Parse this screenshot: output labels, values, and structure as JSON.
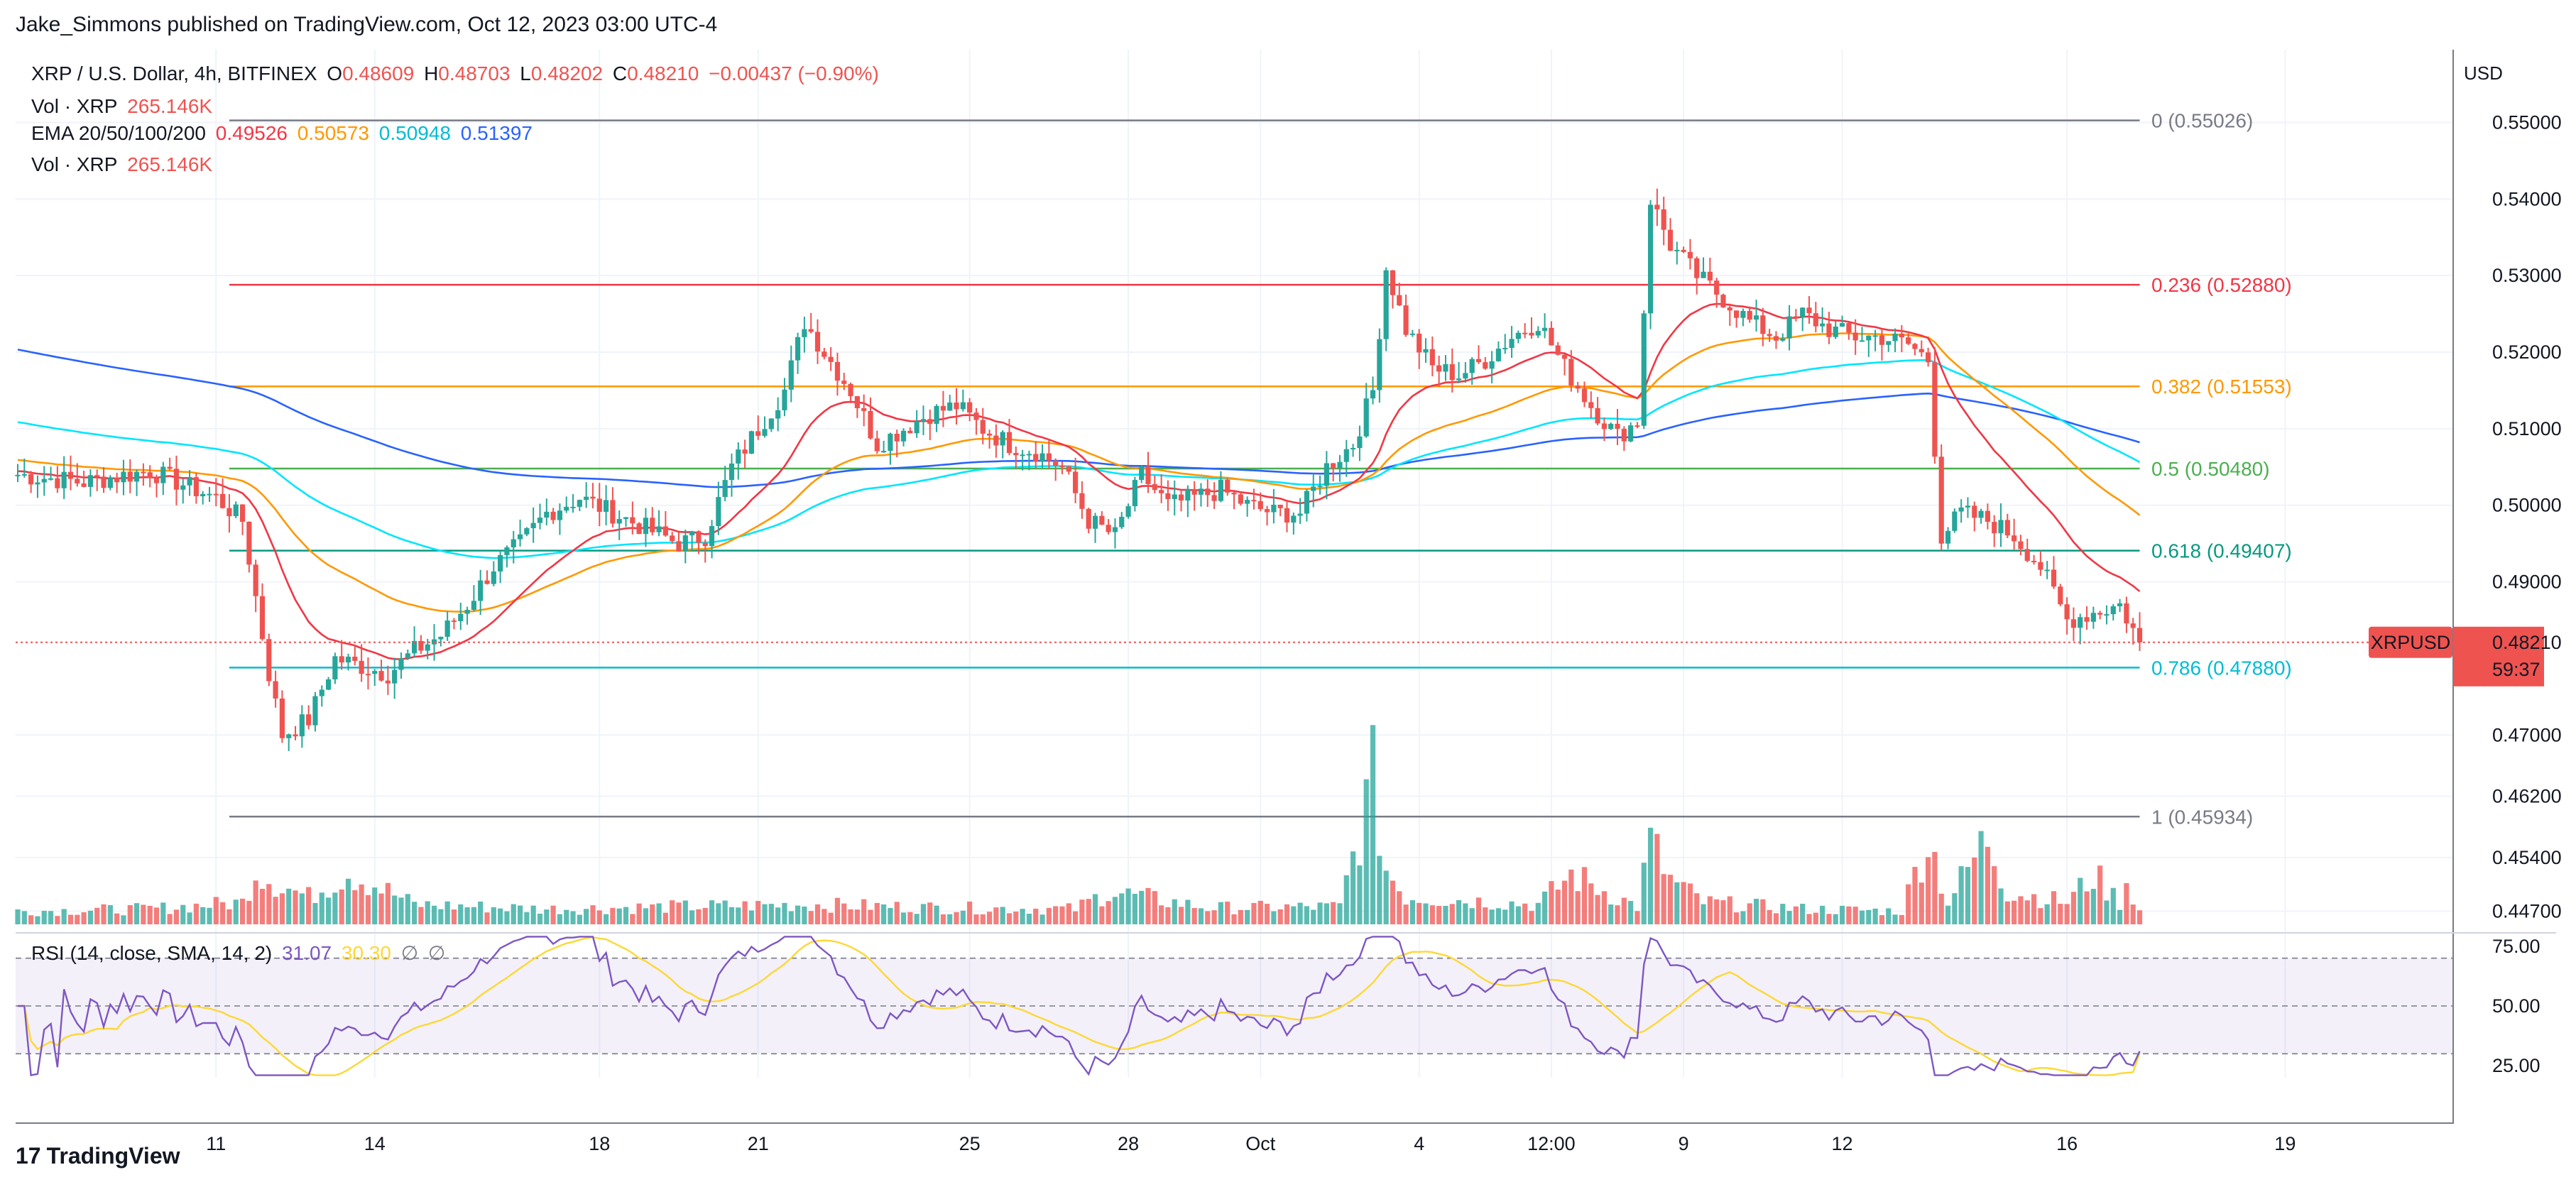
{
  "header": {
    "published": "Jake_Simmons published on TradingView.com, Oct 12, 2023 03:00 UTC-4",
    "symbol": "XRP / U.S. Dollar, 4h, BITFINEX",
    "o_label": "O",
    "o_value": "0.48609",
    "h_label": "H",
    "h_value": "0.48703",
    "l_label": "L",
    "l_value": "0.48202",
    "c_label": "C",
    "c_value": "0.48210",
    "change": "−0.00437 (−0.90%)",
    "vol_label": "Vol · XRP",
    "vol_value": "265.146K",
    "ema_label": "EMA 20/50/100/200",
    "ema20": "0.49526",
    "ema50": "0.50573",
    "ema100": "0.50948",
    "ema200": "0.51397",
    "vol2_label": "Vol · XRP",
    "vol2_value": "265.146K",
    "currency": "USD"
  },
  "rsi_legend": {
    "label": "RSI (14, close, SMA, 14, 2)",
    "rsi": "31.07",
    "sma": "30.30",
    "glyph1": "∅",
    "glyph2": "∅"
  },
  "price_tag": {
    "symbol": "XRPUSD",
    "price": "0.48210",
    "countdown": "59:37"
  },
  "footer": {
    "brand": "TradingView",
    "logo_glyph": "17"
  },
  "colors": {
    "up": "#26a69a",
    "down": "#ef5350",
    "ema20": "#f23645",
    "ema50": "#ff9800",
    "ema100": "#00e5ff",
    "ema200": "#2962ff",
    "rsi": "#7e57c2",
    "rsi_sma": "#fdd835"
  },
  "chart_data": [
    {
      "type": "candlestick",
      "title": "XRP / U.S. Dollar, 4h, BITFINEX",
      "x_tick_labels": [
        "11",
        "14",
        "18",
        "21",
        "25",
        "28",
        "Oct",
        "4",
        "12:00",
        "9",
        "12",
        "16",
        "19"
      ],
      "y_tick_labels": [
        "0.55000",
        "0.54000",
        "0.53000",
        "0.52000",
        "0.51000",
        "0.50000",
        "0.49000",
        "0.47000",
        "0.46200",
        "0.45400",
        "0.44700"
      ],
      "ylim": [
        0.4449,
        0.5595
      ],
      "fibonacci": [
        {
          "label": "0 (0.55026)",
          "level": 0.55026,
          "color": "#787b86"
        },
        {
          "label": "0.236 (0.52880)",
          "level": 0.5288,
          "color": "#f23645"
        },
        {
          "label": "0.382 (0.51553)",
          "level": 0.51553,
          "color": "#ff9800"
        },
        {
          "label": "0.5 (0.50480)",
          "level": 0.5048,
          "color": "#4caf50"
        },
        {
          "label": "0.618 (0.49407)",
          "level": 0.49407,
          "color": "#089981"
        },
        {
          "label": "0.786 (0.47880)",
          "level": 0.4788,
          "color": "#00bcd4"
        },
        {
          "label": "1 (0.45934)",
          "level": 0.45934,
          "color": "#787b86"
        }
      ],
      "last_price": 0.4821,
      "keypoints_close": [
        [
          0,
          0.504
        ],
        [
          10,
          0.503
        ],
        [
          20,
          0.5045
        ],
        [
          30,
          0.501
        ],
        [
          34,
          0.498
        ],
        [
          38,
          0.478
        ],
        [
          40,
          0.47
        ],
        [
          44,
          0.472
        ],
        [
          48,
          0.48
        ],
        [
          52,
          0.479
        ],
        [
          56,
          0.478
        ],
        [
          60,
          0.481
        ],
        [
          64,
          0.483
        ],
        [
          68,
          0.487
        ],
        [
          72,
          0.492
        ],
        [
          76,
          0.495
        ],
        [
          80,
          0.499
        ],
        [
          85,
          0.501
        ],
        [
          90,
          0.499
        ],
        [
          95,
          0.497
        ],
        [
          100,
          0.495
        ],
        [
          104,
          0.496
        ],
        [
          108,
          0.505
        ],
        [
          112,
          0.51
        ],
        [
          116,
          0.515
        ],
        [
          119,
          0.524
        ],
        [
          122,
          0.52
        ],
        [
          126,
          0.515
        ],
        [
          130,
          0.508
        ],
        [
          134,
          0.51
        ],
        [
          138,
          0.512
        ],
        [
          142,
          0.513
        ],
        [
          146,
          0.51
        ],
        [
          150,
          0.508
        ],
        [
          154,
          0.507
        ],
        [
          158,
          0.505
        ],
        [
          162,
          0.498
        ],
        [
          166,
          0.496
        ],
        [
          170,
          0.504
        ],
        [
          174,
          0.5
        ],
        [
          178,
          0.501
        ],
        [
          182,
          0.502
        ],
        [
          186,
          0.5
        ],
        [
          190,
          0.499
        ],
        [
          194,
          0.499
        ],
        [
          198,
          0.505
        ],
        [
          202,
          0.508
        ],
        [
          205,
          0.515
        ],
        [
          207,
          0.531
        ],
        [
          210,
          0.523
        ],
        [
          214,
          0.518
        ],
        [
          218,
          0.517
        ],
        [
          222,
          0.519
        ],
        [
          226,
          0.522
        ],
        [
          230,
          0.524
        ],
        [
          234,
          0.518
        ],
        [
          238,
          0.513
        ],
        [
          242,
          0.509
        ],
        [
          245,
          0.511
        ],
        [
          247,
          0.54
        ],
        [
          250,
          0.534
        ],
        [
          254,
          0.53
        ],
        [
          258,
          0.527
        ],
        [
          262,
          0.524
        ],
        [
          266,
          0.522
        ],
        [
          270,
          0.525
        ],
        [
          274,
          0.523
        ],
        [
          278,
          0.522
        ],
        [
          282,
          0.522
        ],
        [
          286,
          0.521
        ],
        [
          289,
          0.519
        ],
        [
          291,
          0.496
        ],
        [
          294,
          0.499
        ],
        [
          298,
          0.498
        ],
        [
          302,
          0.496
        ],
        [
          306,
          0.492
        ],
        [
          310,
          0.485
        ],
        [
          314,
          0.486
        ],
        [
          318,
          0.487
        ],
        [
          321,
          0.4821
        ]
      ],
      "keypoints_volume": [
        [
          0,
          12
        ],
        [
          20,
          14
        ],
        [
          34,
          20
        ],
        [
          36,
          50
        ],
        [
          40,
          35
        ],
        [
          44,
          25
        ],
        [
          50,
          48
        ],
        [
          60,
          18
        ],
        [
          80,
          14
        ],
        [
          100,
          16
        ],
        [
          120,
          18
        ],
        [
          140,
          15
        ],
        [
          160,
          14
        ],
        [
          165,
          30
        ],
        [
          180,
          15
        ],
        [
          200,
          16
        ],
        [
          205,
          130
        ],
        [
          207,
          50
        ],
        [
          210,
          25
        ],
        [
          230,
          18
        ],
        [
          235,
          45
        ],
        [
          245,
          16
        ],
        [
          247,
          75
        ],
        [
          250,
          40
        ],
        [
          255,
          20
        ],
        [
          270,
          14
        ],
        [
          285,
          12
        ],
        [
          289,
          80
        ],
        [
          292,
          20
        ],
        [
          298,
          80
        ],
        [
          301,
          30
        ],
        [
          310,
          20
        ],
        [
          314,
          45
        ],
        [
          318,
          20
        ],
        [
          319,
          40
        ],
        [
          321,
          12
        ]
      ],
      "candle_count": 322
    },
    {
      "type": "line",
      "title": "RSI (14, close, SMA, 14, 2)",
      "y_tick_labels": [
        "75.00",
        "50.00",
        "25.00"
      ],
      "ylim": [
        20,
        80
      ],
      "levels": [
        70,
        50,
        30
      ],
      "last_rsi": 31.07,
      "last_sma": 30.3
    }
  ]
}
